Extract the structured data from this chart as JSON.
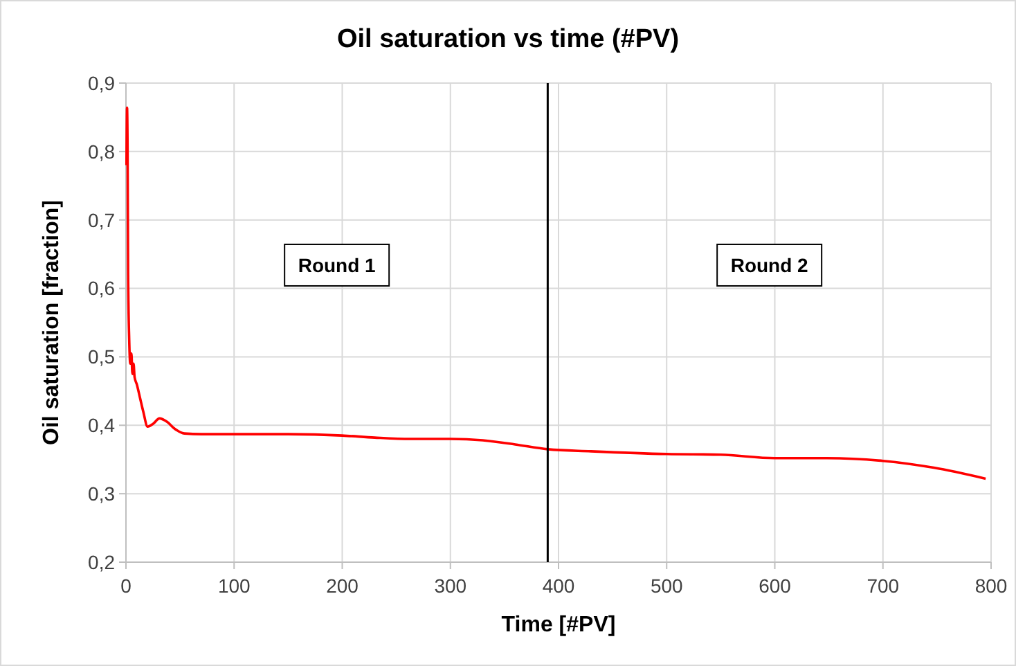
{
  "chart_data": {
    "type": "line",
    "title": "Oil saturation vs time (#PV)",
    "xlabel": "Time [#PV]",
    "ylabel": "Oil saturation [fraction]",
    "series": [
      {
        "color": "#ff0000",
        "x": [
          0.5,
          1,
          1.5,
          2,
          3,
          4,
          5,
          6,
          7,
          8,
          10,
          13,
          16,
          20,
          25,
          31,
          38,
          45,
          54,
          70,
          100,
          150,
          200,
          230,
          263,
          300,
          330,
          360,
          390,
          430,
          500,
          550,
          600,
          648,
          700,
          747,
          795
        ],
        "values": [
          0.78,
          0.864,
          0.8,
          0.62,
          0.525,
          0.49,
          0.505,
          0.475,
          0.49,
          0.47,
          0.46,
          0.44,
          0.42,
          0.398,
          0.402,
          0.41,
          0.405,
          0.395,
          0.388,
          0.387,
          0.387,
          0.387,
          0.385,
          0.382,
          0.38,
          0.38,
          0.378,
          0.372,
          0.365,
          0.362,
          0.358,
          0.357,
          0.352,
          0.352,
          0.348,
          0.338,
          0.322
        ]
      }
    ],
    "xlim": [
      0,
      800
    ],
    "xticks": [
      0,
      100,
      200,
      300,
      400,
      500,
      600,
      700,
      800
    ],
    "ylim": [
      0.2,
      0.9
    ],
    "yticks": [
      {
        "value": 0.2,
        "label": "0,2"
      },
      {
        "value": 0.3,
        "label": "0,3"
      },
      {
        "value": 0.4,
        "label": "0,4"
      },
      {
        "value": 0.5,
        "label": "0,5"
      },
      {
        "value": 0.6,
        "label": "0,6"
      },
      {
        "value": 0.7,
        "label": "0,7"
      },
      {
        "value": 0.8,
        "label": "0,8"
      },
      {
        "value": 0.9,
        "label": "0,9"
      }
    ],
    "grid": true,
    "marker": "none",
    "line_style": "solid",
    "ref_lines": [
      {
        "axis": "x",
        "value": 390,
        "color": "#000000"
      }
    ],
    "annotations": [
      "Round 1",
      "Round 2"
    ]
  }
}
